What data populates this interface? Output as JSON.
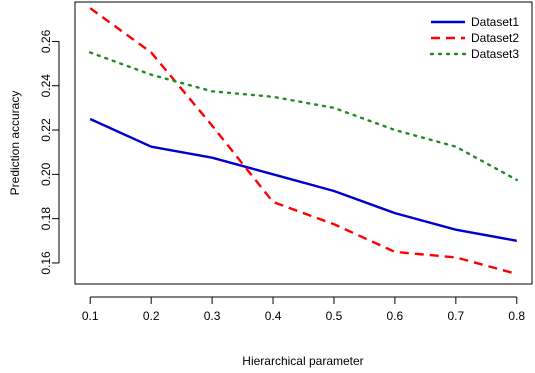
{
  "chart_data": {
    "type": "line",
    "title": "",
    "xlabel": "Hierarchical parameter",
    "ylabel": "Prediction accuracy",
    "x": [
      0.1,
      0.2,
      0.3,
      0.4,
      0.5,
      0.6,
      0.7,
      0.8
    ],
    "xlim": [
      0.075,
      0.825
    ],
    "ylim": [
      0.1505,
      0.2778
    ],
    "xticks": [
      "0.1",
      "0.2",
      "0.3",
      "0.4",
      "0.5",
      "0.6",
      "0.7",
      "0.8"
    ],
    "yticks": [
      "0.16",
      "0.18",
      "0.20",
      "0.22",
      "0.24",
      "0.26"
    ],
    "grid": false,
    "legend_position": "top-right",
    "series": [
      {
        "name": "Dataset1",
        "color": "#0000CD",
        "style": "solid",
        "values": [
          0.225,
          0.2125,
          0.2075,
          0.2,
          0.1925,
          0.1825,
          0.175,
          0.17
        ]
      },
      {
        "name": "Dataset2",
        "color": "#FF0000",
        "style": "dashed",
        "values": [
          0.275,
          0.255,
          0.222,
          0.1875,
          0.1775,
          0.165,
          0.1625,
          0.155
        ]
      },
      {
        "name": "Dataset3",
        "color": "#228B22",
        "style": "dotted",
        "values": [
          0.255,
          0.245,
          0.2375,
          0.235,
          0.23,
          0.22,
          0.2125,
          0.1975
        ]
      }
    ]
  }
}
